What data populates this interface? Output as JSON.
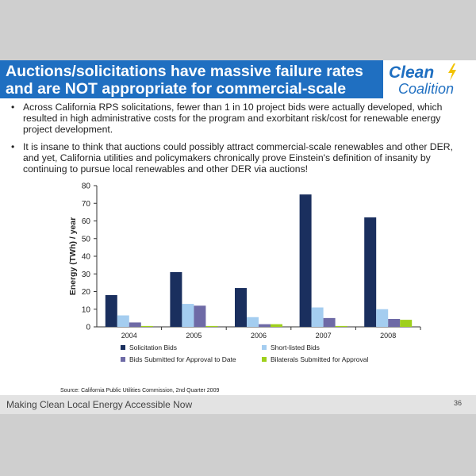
{
  "slide": {
    "title_lines": [
      "Auctions/solicitations have massive failure rates",
      "and are NOT appropriate for commercial-scale"
    ],
    "logo": {
      "line1": "Clean",
      "line2": "Coalition"
    },
    "bullets": [
      "Across California RPS solicitations, fewer than 1 in 10 project bids were actually developed, which resulted in high administrative costs for the program and exorbitant risk/cost for renewable energy project development.",
      "It is insane to think that auctions could possibly attract commercial-scale renewables and other DER, and yet, California utilities and policymakers chronically prove Einstein's definition of insanity by continuing to pursue local renewables and other DER via auctions!"
    ],
    "footer": "Making Clean Local Energy Accessible Now",
    "page_number": "36"
  },
  "colors": {
    "title_bg": "#1f6fc1",
    "logo_blue": "#1f6fc1",
    "logo_bolt": "#f2c200"
  },
  "chart_data": {
    "type": "bar",
    "categories": [
      "2004",
      "2005",
      "2006",
      "2007",
      "2008"
    ],
    "series": [
      {
        "name": "Solicitation Bids",
        "color": "#1a2f5e",
        "values": [
          18,
          31,
          22,
          75,
          62
        ]
      },
      {
        "name": "Short-listed Bids",
        "color": "#a4cdf0",
        "values": [
          6.5,
          13,
          5.5,
          11,
          10
        ]
      },
      {
        "name": "Bids Submitted for Approval to Date",
        "color": "#6e6aa6",
        "values": [
          2.5,
          12,
          1.5,
          5,
          4.5
        ]
      },
      {
        "name": "Bilaterals Submitted for Approval",
        "color": "#9ed01c",
        "values": [
          0.5,
          0.5,
          1.5,
          0.5,
          4
        ]
      }
    ],
    "ylabel": "Energy (TWh) / year",
    "xlabel": "",
    "ylim": [
      0,
      80
    ],
    "yticks": [
      0,
      10,
      20,
      30,
      40,
      50,
      60,
      70,
      80
    ],
    "grid": false,
    "legend": "bottom",
    "source": "Source: California Public Utilities Commission, 2nd Quarter 2009"
  }
}
